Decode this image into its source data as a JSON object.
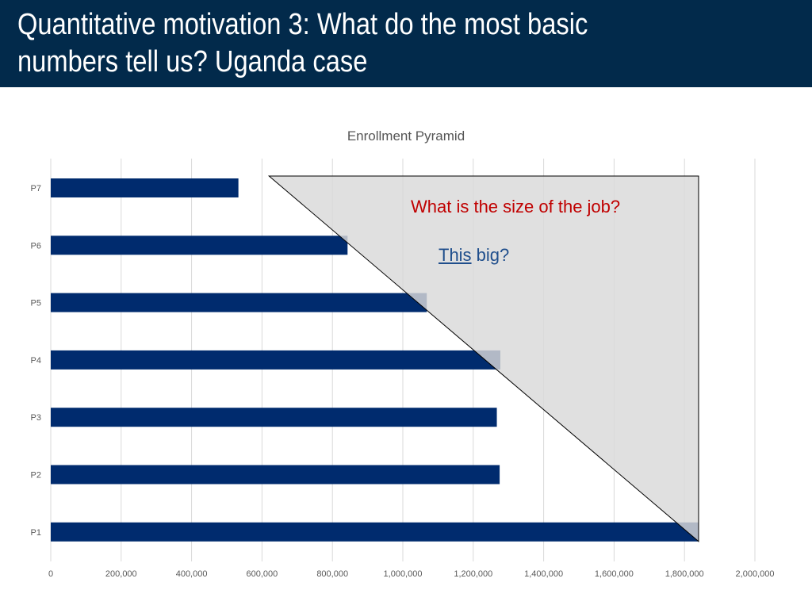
{
  "header": {
    "title": "Quantitative motivation 3: What do the most basic numbers tell us? Uganda case"
  },
  "chart_data": {
    "type": "bar",
    "orientation": "horizontal",
    "title": "Enrollment Pyramid",
    "categories": [
      "P7",
      "P6",
      "P5",
      "P4",
      "P3",
      "P2",
      "P1"
    ],
    "values": [
      533000,
      843000,
      1068000,
      1277000,
      1267000,
      1275000,
      1840000
    ],
    "bar_color": "#002b6e",
    "xlim": [
      0,
      2000000
    ],
    "xticks": [
      0,
      200000,
      400000,
      600000,
      800000,
      1000000,
      1200000,
      1400000,
      1600000,
      1800000,
      2000000
    ],
    "xtick_labels": [
      "0",
      "200,000",
      "400,000",
      "600,000",
      "800,000",
      "1,000,000",
      "1,200,000",
      "1,400,000",
      "1,600,000",
      "1,800,000",
      "2,000,000"
    ],
    "grid": "vertical",
    "legend": "none",
    "overlay_triangle": {
      "fill": "#d9d9d9",
      "vertices": [
        {
          "x": 620000,
          "category": "P7"
        },
        {
          "x": 1840000,
          "category": "P7"
        },
        {
          "x": 1840000,
          "category": "P1"
        }
      ]
    }
  },
  "annotations": {
    "question": "What is the size of the job?",
    "link_word": "This",
    "link_rest": " big?"
  },
  "colors": {
    "header_bg": "#022a4b",
    "question": "#c00000",
    "link": "#1f4e8c"
  }
}
